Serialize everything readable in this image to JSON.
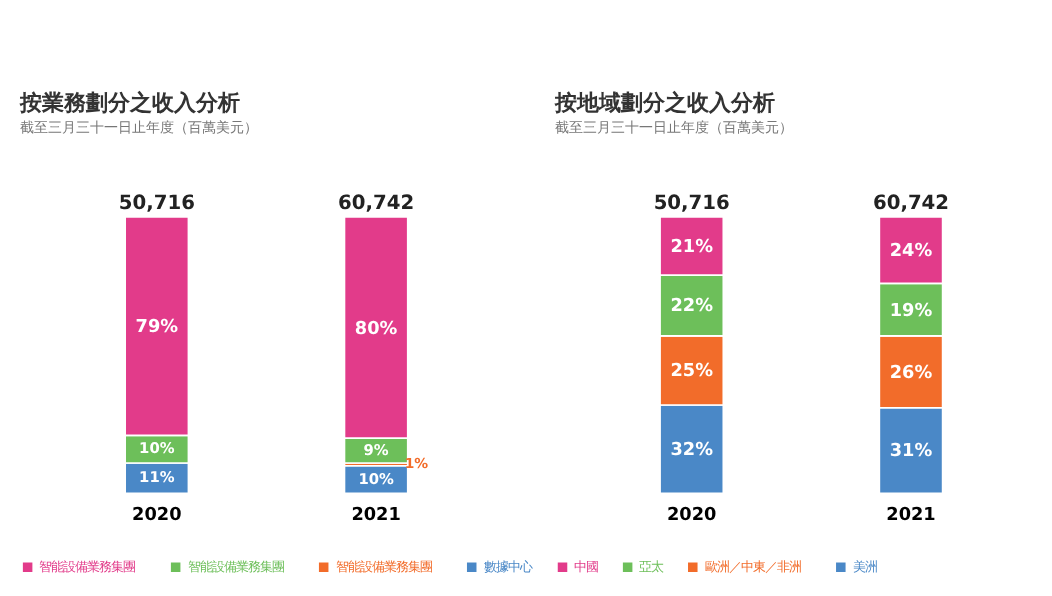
{
  "chart_data": [
    {
      "type": "bar",
      "title": "按業務劃分之收入分析",
      "subtitle": "截至三月三十一日止年度（百萬美元）",
      "categories": [
        "2020",
        "2021"
      ],
      "stacked": true,
      "legend": "bottom",
      "annotations": [
        {
          "text": "50,716",
          "x": "2020",
          "y": 100
        },
        {
          "text": "60,742",
          "x": "2021",
          "y": 100
        }
      ],
      "series": [
        {
          "name": "數據中心",
          "color": "#4a88c7",
          "values": [
            11,
            10
          ],
          "value_labels": [
            "11%",
            "10%"
          ]
        },
        {
          "name": "智能設備業務集團",
          "color": "#f26c2a",
          "values": [
            null,
            1
          ],
          "value_labels": [
            null,
            "1%"
          ]
        },
        {
          "name": "智能設備業務集團",
          "color": "#6dbf5a",
          "values": [
            10,
            9
          ],
          "value_labels": [
            "10%",
            "9%"
          ]
        },
        {
          "name": "智能設備業務集團",
          "color": "#e23b8a",
          "values": [
            79,
            80
          ],
          "value_labels": [
            "79%",
            "80%"
          ]
        }
      ]
    },
    {
      "type": "bar",
      "title": "按地域劃分之收入分析",
      "subtitle": "截至三月三十一日止年度（百萬美元）",
      "categories": [
        "2020",
        "2021"
      ],
      "stacked": true,
      "legend": "bottom",
      "annotations": [
        {
          "text": "50,716",
          "x": "2020",
          "y": 100
        },
        {
          "text": "60,742",
          "x": "2021",
          "y": 100
        }
      ],
      "series": [
        {
          "name": "美洲",
          "color": "#4a88c7",
          "values": [
            32,
            31
          ],
          "value_labels": [
            "32%",
            "31%"
          ]
        },
        {
          "name": "歐洲／中東／非洲",
          "color": "#f26c2a",
          "values": [
            25,
            26
          ],
          "value_labels": [
            "25%",
            "26%"
          ]
        },
        {
          "name": "亞太",
          "color": "#6dbf5a",
          "values": [
            22,
            19
          ],
          "value_labels": [
            "22%",
            "19%"
          ]
        },
        {
          "name": "中國",
          "color": "#e23b8a",
          "values": [
            21,
            24
          ],
          "value_labels": [
            "21%",
            "24%"
          ]
        }
      ]
    }
  ]
}
